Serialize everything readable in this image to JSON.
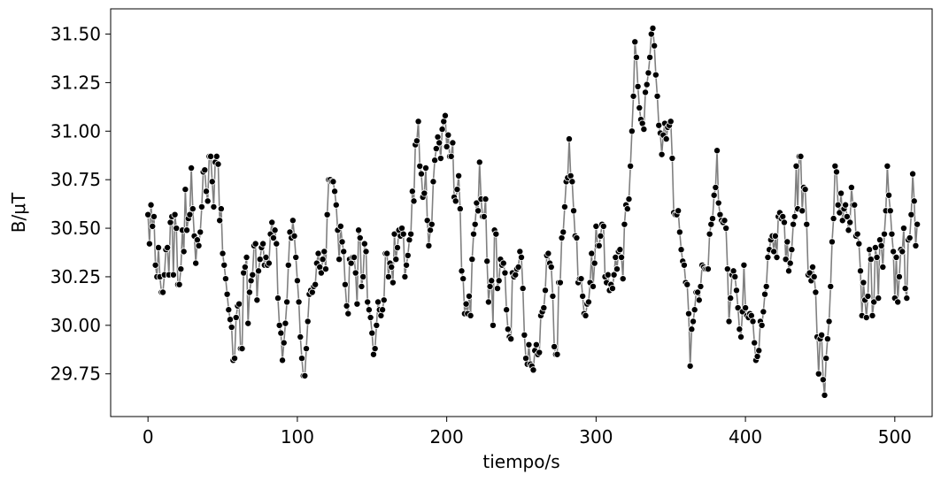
{
  "chart_data": {
    "type": "line",
    "xlabel": "tiempo/s",
    "ylabel": "B/μT",
    "xlim": [
      -25,
      525
    ],
    "ylim": [
      29.53,
      31.63
    ],
    "xticks": [
      0,
      100,
      200,
      300,
      400,
      500
    ],
    "xtick_labels": [
      "0",
      "100",
      "200",
      "300",
      "400",
      "500"
    ],
    "yticks": [
      29.75,
      30.0,
      30.25,
      30.5,
      30.75,
      31.0,
      31.25,
      31.5
    ],
    "ytick_labels": [
      "29.75",
      "30.00",
      "30.25",
      "30.50",
      "30.75",
      "31.00",
      "31.25",
      "31.50"
    ],
    "grid": false,
    "line_color": "#808080",
    "marker_color": "#000000",
    "marker_edge_color": "#ffffff",
    "x_start": 0,
    "x_step": 1,
    "series": [
      {
        "values": [
          30.57,
          30.42,
          30.62,
          30.51,
          30.56,
          30.31,
          30.25,
          30.4,
          30.25,
          30.17,
          30.17,
          30.26,
          30.39,
          30.4,
          30.26,
          30.53,
          30.56,
          30.26,
          30.57,
          30.5,
          30.21,
          30.21,
          30.29,
          30.49,
          30.38,
          30.7,
          30.49,
          30.55,
          30.57,
          30.81,
          30.6,
          30.46,
          30.32,
          30.44,
          30.41,
          30.48,
          30.61,
          30.79,
          30.8,
          30.69,
          30.64,
          30.87,
          30.87,
          30.74,
          30.61,
          30.84,
          30.87,
          30.83,
          30.54,
          30.6,
          30.37,
          30.31,
          30.24,
          30.16,
          30.08,
          30.03,
          29.99,
          29.82,
          29.83,
          30.04,
          30.1,
          30.11,
          29.88,
          29.88,
          30.27,
          30.3,
          30.35,
          30.01,
          30.17,
          30.23,
          30.26,
          30.41,
          30.42,
          30.13,
          30.28,
          30.34,
          30.4,
          30.42,
          30.31,
          30.35,
          30.31,
          30.32,
          30.47,
          30.53,
          30.45,
          30.49,
          30.42,
          30.14,
          30.0,
          29.96,
          29.82,
          29.91,
          30.01,
          30.12,
          30.31,
          30.48,
          30.45,
          30.54,
          30.46,
          30.35,
          30.23,
          30.12,
          29.94,
          29.83,
          29.74,
          29.74,
          29.88,
          30.02,
          30.16,
          30.18,
          30.17,
          30.2,
          30.21,
          30.32,
          30.37,
          30.3,
          30.27,
          30.34,
          30.38,
          30.29,
          30.57,
          30.75,
          30.75,
          30.74,
          30.74,
          30.69,
          30.62,
          30.49,
          30.34,
          30.51,
          30.43,
          30.38,
          30.21,
          30.1,
          30.06,
          30.34,
          30.32,
          30.35,
          30.35,
          30.27,
          30.11,
          30.49,
          30.45,
          30.2,
          30.25,
          30.42,
          30.38,
          30.12,
          30.08,
          30.04,
          29.96,
          29.85,
          29.88,
          30.0,
          30.12,
          30.08,
          30.05,
          30.08,
          30.13,
          30.37,
          30.37,
          30.25,
          30.32,
          30.3,
          30.22,
          30.47,
          30.34,
          30.4,
          30.49,
          30.46,
          30.5,
          30.47,
          30.25,
          30.31,
          30.36,
          30.44,
          30.47,
          30.69,
          30.64,
          30.93,
          30.95,
          31.05,
          30.82,
          30.78,
          30.66,
          30.68,
          30.81,
          30.54,
          30.41,
          30.49,
          30.52,
          30.74,
          30.85,
          30.91,
          30.97,
          30.94,
          30.86,
          31.01,
          31.05,
          31.08,
          30.92,
          30.98,
          30.87,
          30.87,
          30.94,
          30.66,
          30.64,
          30.7,
          30.77,
          30.6,
          30.28,
          30.24,
          30.06,
          30.11,
          30.06,
          30.15,
          30.05,
          30.34,
          30.47,
          30.52,
          30.63,
          30.59,
          30.84,
          30.65,
          30.56,
          30.56,
          30.65,
          30.33,
          30.12,
          30.2,
          30.23,
          30.0,
          30.49,
          30.47,
          30.19,
          30.23,
          30.34,
          30.31,
          30.32,
          30.27,
          30.08,
          29.98,
          29.94,
          29.93,
          30.27,
          30.25,
          30.26,
          30.29,
          30.3,
          30.38,
          30.35,
          30.19,
          29.95,
          29.83,
          29.8,
          29.9,
          29.8,
          29.79,
          29.77,
          29.87,
          29.9,
          29.85,
          29.86,
          30.05,
          30.07,
          30.09,
          30.18,
          30.36,
          30.37,
          30.32,
          30.3,
          30.15,
          29.89,
          29.85,
          29.85,
          30.22,
          30.22,
          30.45,
          30.48,
          30.61,
          30.74,
          30.76,
          30.96,
          30.77,
          30.74,
          30.59,
          30.46,
          30.45,
          30.22,
          30.24,
          30.24,
          30.15,
          30.06,
          30.05,
          30.11,
          30.12,
          30.22,
          30.37,
          30.2,
          30.32,
          30.51,
          30.41,
          30.41,
          30.46,
          30.52,
          30.51,
          30.25,
          30.22,
          30.26,
          30.18,
          30.21,
          30.19,
          30.26,
          30.35,
          30.29,
          30.38,
          30.39,
          30.35,
          30.24,
          30.52,
          30.62,
          30.6,
          30.65,
          30.82,
          31.0,
          31.18,
          31.46,
          31.38,
          31.23,
          31.12,
          31.06,
          31.04,
          31.01,
          31.2,
          31.24,
          31.3,
          31.38,
          31.5,
          31.53,
          31.44,
          31.29,
          31.18,
          31.03,
          30.99,
          30.88,
          30.98,
          31.04,
          30.96,
          31.02,
          31.03,
          31.05,
          30.86,
          30.58,
          30.57,
          30.57,
          30.59,
          30.48,
          30.39,
          30.33,
          30.31,
          30.22,
          30.21,
          30.06,
          29.79,
          29.98,
          30.02,
          30.08,
          30.17,
          30.17,
          30.13,
          30.2,
          30.31,
          30.3,
          30.29,
          30.29,
          30.29,
          30.47,
          30.52,
          30.55,
          30.67,
          30.71,
          30.9,
          30.63,
          30.57,
          30.54,
          30.53,
          30.54,
          30.5,
          30.29,
          30.02,
          30.14,
          30.26,
          30.28,
          30.25,
          30.18,
          30.09,
          29.98,
          29.94,
          30.07,
          30.31,
          30.09,
          30.05,
          30.04,
          30.06,
          30.05,
          30.02,
          29.91,
          29.82,
          29.84,
          29.87,
          30.02,
          30.0,
          30.07,
          30.16,
          30.2,
          30.35,
          30.39,
          30.44,
          30.46,
          30.38,
          30.46,
          30.35,
          30.56,
          30.58,
          30.55,
          30.56,
          30.53,
          30.34,
          30.43,
          30.28,
          30.32,
          30.39,
          30.52,
          30.56,
          30.82,
          30.6,
          30.87,
          30.87,
          30.59,
          30.71,
          30.7,
          30.52,
          30.26,
          30.27,
          30.23,
          30.3,
          30.25,
          30.17,
          29.94,
          29.75,
          29.93,
          29.95,
          29.72,
          29.64,
          29.83,
          29.93,
          30.02,
          30.2,
          30.43,
          30.55,
          30.82,
          30.79,
          30.62,
          30.58,
          30.68,
          30.54,
          30.6,
          30.62,
          30.56,
          30.49,
          30.53,
          30.71,
          30.62,
          30.62,
          30.46,
          30.47,
          30.42,
          30.28,
          30.05,
          30.22,
          30.13,
          30.04,
          30.15,
          30.39,
          30.34,
          30.05,
          30.12,
          30.4,
          30.35,
          30.14,
          30.44,
          30.41,
          30.3,
          30.47,
          30.59,
          30.82,
          30.67,
          30.59,
          30.47,
          30.38,
          30.14,
          30.35,
          30.12,
          30.25,
          30.39,
          30.38,
          30.5,
          30.19,
          30.14,
          30.44,
          30.45,
          30.57,
          30.78,
          30.64,
          30.41,
          30.52
        ]
      }
    ]
  }
}
